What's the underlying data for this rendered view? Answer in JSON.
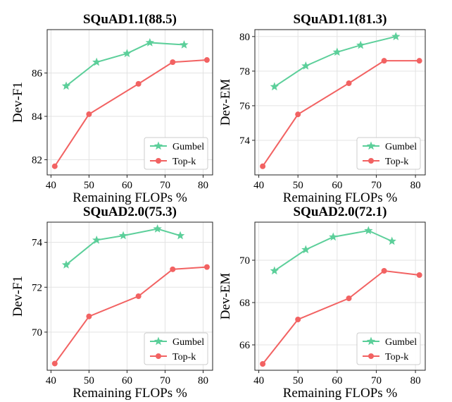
{
  "chart_data": [
    {
      "type": "line",
      "title": "SQuAD1.1(88.5)",
      "xlabel": "Remaining FLOPs %",
      "ylabel": "Dev-F1",
      "xlim": [
        39,
        82.5
      ],
      "ylim": [
        81.3,
        88.0
      ],
      "xticks": [
        40,
        50,
        60,
        70,
        80
      ],
      "yticks": [
        82,
        84,
        86
      ],
      "grid": true,
      "legend_position": "bottom-right",
      "series": [
        {
          "name": "Gumbel",
          "color": "#5ccf9a",
          "marker": "star",
          "x": [
            44,
            52,
            60,
            66,
            75
          ],
          "y": [
            85.4,
            86.5,
            86.9,
            87.4,
            87.3
          ]
        },
        {
          "name": "Top-k",
          "color": "#f26262",
          "marker": "circle",
          "x": [
            41,
            50,
            63,
            72,
            81
          ],
          "y": [
            81.7,
            84.1,
            85.5,
            86.5,
            86.6
          ]
        }
      ]
    },
    {
      "type": "line",
      "title": "SQuAD1.1(81.3)",
      "xlabel": "Remaining FLOPs %",
      "ylabel": "Dev-EM",
      "xlim": [
        39,
        82.5
      ],
      "ylim": [
        72.0,
        80.4
      ],
      "xticks": [
        40,
        50,
        60,
        70,
        80
      ],
      "yticks": [
        74,
        76,
        78,
        80
      ],
      "grid": true,
      "legend_position": "bottom-right",
      "series": [
        {
          "name": "Gumbel",
          "color": "#5ccf9a",
          "marker": "star",
          "x": [
            44,
            52,
            60,
            66,
            75
          ],
          "y": [
            77.1,
            78.3,
            79.1,
            79.5,
            80.0
          ]
        },
        {
          "name": "Top-k",
          "color": "#f26262",
          "marker": "circle",
          "x": [
            41,
            50,
            63,
            72,
            81
          ],
          "y": [
            72.5,
            75.5,
            77.3,
            78.6,
            78.6
          ]
        }
      ]
    },
    {
      "type": "line",
      "title": "SQuAD2.0(75.3)",
      "xlabel": "Remaining FLOPs %",
      "ylabel": "Dev-F1",
      "xlim": [
        39,
        82.5
      ],
      "ylim": [
        68.3,
        74.9
      ],
      "xticks": [
        40,
        50,
        60,
        70,
        80
      ],
      "yticks": [
        70,
        72,
        74
      ],
      "grid": true,
      "legend_position": "bottom-right",
      "series": [
        {
          "name": "Gumbel",
          "color": "#5ccf9a",
          "marker": "star",
          "x": [
            44,
            52,
            59,
            68,
            74
          ],
          "y": [
            73.0,
            74.1,
            74.3,
            74.6,
            74.3
          ]
        },
        {
          "name": "Top-k",
          "color": "#f26262",
          "marker": "circle",
          "x": [
            41,
            50,
            63,
            72,
            81
          ],
          "y": [
            68.6,
            70.7,
            71.6,
            72.8,
            72.9
          ]
        }
      ]
    },
    {
      "type": "line",
      "title": "SQuAD2.0(72.1)",
      "xlabel": "Remaining FLOPs %",
      "ylabel": "Dev-EM",
      "xlim": [
        39,
        82.5
      ],
      "ylim": [
        64.8,
        71.8
      ],
      "xticks": [
        40,
        50,
        60,
        70,
        80
      ],
      "yticks": [
        66,
        68,
        70
      ],
      "grid": true,
      "legend_position": "bottom-right",
      "series": [
        {
          "name": "Gumbel",
          "color": "#5ccf9a",
          "marker": "star",
          "x": [
            44,
            52,
            59,
            68,
            74
          ],
          "y": [
            69.5,
            70.5,
            71.1,
            71.4,
            70.9
          ]
        },
        {
          "name": "Top-k",
          "color": "#f26262",
          "marker": "circle",
          "x": [
            41,
            50,
            63,
            72,
            81
          ],
          "y": [
            65.1,
            67.2,
            68.2,
            69.5,
            69.3
          ]
        }
      ]
    }
  ]
}
